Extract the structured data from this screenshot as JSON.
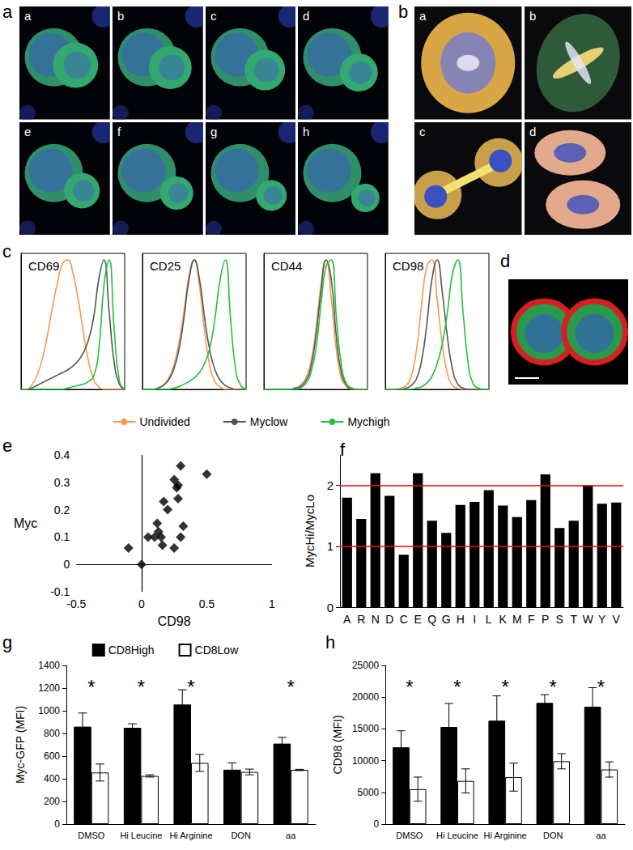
{
  "images": [
    {
      "label": "a",
      "tiles": [
        "a",
        "b",
        "c",
        "d",
        "e",
        "f",
        "g",
        "h"
      ]
    },
    {
      "label": "b",
      "tiles": [
        "a",
        "b",
        "c",
        "d"
      ]
    },
    {
      "label": "d"
    }
  ],
  "chart_data": [
    {
      "label": "c",
      "type": "line",
      "panels": [
        "CD69",
        "CD25",
        "CD44",
        "CD98"
      ],
      "x": [
        0,
        5,
        10,
        15,
        20,
        25,
        30,
        35,
        40,
        45,
        50,
        55,
        60,
        65,
        70,
        75,
        80,
        85,
        90,
        95,
        100
      ],
      "xlim": [
        0,
        100
      ],
      "ylim": [
        0,
        105
      ],
      "tick_labels": false,
      "legend": "bottom",
      "series": [
        {
          "name": "Undivided",
          "color": "#f59a4a",
          "values": [
            [
              0,
              0,
              3,
              10,
              22,
              40,
              62,
              82,
              97,
              100,
              90,
              70,
              45,
              22,
              8,
              2,
              0,
              0,
              0,
              0,
              0
            ],
            [
              0,
              0,
              0,
              1,
              3,
              8,
              18,
              35,
              60,
              88,
              100,
              80,
              45,
              18,
              6,
              2,
              0,
              0,
              0,
              0,
              0
            ],
            [
              0,
              0,
              0,
              0,
              0,
              0,
              1,
              3,
              8,
              20,
              45,
              80,
              100,
              70,
              30,
              8,
              2,
              0,
              0,
              0,
              0
            ],
            [
              0,
              0,
              0,
              1,
              3,
              10,
              30,
              65,
              95,
              100,
              70,
              35,
              12,
              3,
              1,
              0,
              0,
              0,
              0,
              0,
              0
            ]
          ]
        },
        {
          "name": "Myclow",
          "color": "#555555",
          "values": [
            [
              0,
              0,
              1,
              3,
              5,
              7,
              9,
              11,
              13,
              15,
              18,
              22,
              28,
              38,
              55,
              85,
              100,
              60,
              20,
              4,
              0
            ],
            [
              0,
              0,
              0,
              1,
              3,
              7,
              15,
              30,
              55,
              85,
              100,
              85,
              55,
              30,
              15,
              7,
              3,
              1,
              0,
              0,
              0
            ],
            [
              0,
              0,
              0,
              0,
              0,
              0,
              1,
              2,
              6,
              16,
              40,
              75,
              100,
              85,
              40,
              12,
              3,
              0,
              0,
              0,
              0
            ],
            [
              0,
              0,
              0,
              0,
              1,
              3,
              8,
              22,
              50,
              85,
              100,
              75,
              40,
              15,
              4,
              1,
              0,
              0,
              0,
              0,
              0
            ]
          ]
        },
        {
          "name": "Mychigh",
          "color": "#22c03a",
          "values": [
            [
              0,
              0,
              0,
              0,
              0,
              0,
              0,
              0,
              0,
              1,
              2,
              3,
              4,
              6,
              10,
              30,
              80,
              100,
              45,
              6,
              0
            ],
            [
              0,
              0,
              0,
              0,
              0,
              0,
              1,
              2,
              4,
              6,
              9,
              13,
              20,
              32,
              55,
              85,
              100,
              55,
              15,
              3,
              0
            ],
            [
              0,
              0,
              0,
              0,
              0,
              0,
              0,
              1,
              4,
              12,
              30,
              65,
              95,
              100,
              55,
              18,
              4,
              1,
              0,
              0,
              0
            ],
            [
              0,
              0,
              0,
              0,
              0,
              0,
              1,
              2,
              5,
              10,
              20,
              35,
              60,
              90,
              100,
              60,
              20,
              4,
              1,
              0,
              0
            ]
          ]
        }
      ]
    },
    {
      "label": "e",
      "type": "scatter",
      "x_label": "CD98",
      "y_label": "Myc",
      "x": [
        -0.1,
        0,
        0.05,
        0.1,
        0.12,
        0.13,
        0.15,
        0.16,
        0.17,
        0.2,
        0.25,
        0.25,
        0.28,
        0.28,
        0.3,
        0.3,
        0.32,
        0.5,
        0.27
      ],
      "values": [
        0.06,
        0,
        0.1,
        0.1,
        0.15,
        0.12,
        0.1,
        0.07,
        0.23,
        0.2,
        0.31,
        0.06,
        0.29,
        0.24,
        0.36,
        0.1,
        0.14,
        0.33,
        0.28
      ],
      "xlim": [
        -0.5,
        1
      ],
      "xticks": [
        -0.5,
        0,
        0.5,
        1
      ],
      "ylim": [
        -0.1,
        0.4
      ],
      "yticks": [
        -0.1,
        0,
        0.1,
        0.2,
        0.3,
        0.4
      ],
      "marker": "diamond",
      "color": "#000000"
    },
    {
      "label": "f",
      "type": "bar",
      "y_label": "MycHi/MycLo",
      "categories": [
        "A",
        "R",
        "N",
        "D",
        "C",
        "E",
        "Q",
        "G",
        "H",
        "I",
        "L",
        "K",
        "M",
        "F",
        "P",
        "S",
        "T",
        "W",
        "Y",
        "V"
      ],
      "values": [
        1.8,
        1.45,
        2.2,
        1.83,
        0.86,
        2.2,
        1.42,
        1.22,
        1.68,
        1.73,
        1.92,
        1.67,
        1.48,
        1.76,
        2.18,
        1.3,
        1.42,
        2.0,
        1.7,
        1.72
      ],
      "ylim": [
        0,
        2.5
      ],
      "yticks": [
        0,
        1,
        2
      ],
      "color": "#000000",
      "reference_lines": {
        "values": [
          1,
          2
        ],
        "color": "#ff0000"
      }
    },
    {
      "label": "g",
      "type": "bar",
      "y_label": "Myc-GFP (MFI)",
      "categories": [
        "DMSO",
        "Hi Leucine",
        "Hi Arginine",
        "DON",
        "aa"
      ],
      "ylim": [
        0,
        1400
      ],
      "yticks": [
        0,
        200,
        400,
        600,
        800,
        1000,
        1200,
        1400
      ],
      "legend": "top",
      "series": [
        {
          "name": "CD8High",
          "color": "#000000",
          "values": [
            860,
            850,
            1055,
            480,
            710
          ],
          "errors": [
            120,
            35,
            130,
            60,
            55
          ]
        },
        {
          "name": "CD8Low",
          "color": "#ffffff",
          "values": [
            455,
            425,
            540,
            460,
            478
          ],
          "errors": [
            75,
            10,
            75,
            25,
            5
          ]
        }
      ],
      "annotations": [
        "*",
        "*",
        "*",
        null,
        "*"
      ]
    },
    {
      "label": "h",
      "type": "bar",
      "y_label": "CD98 (MFI)",
      "categories": [
        "DMSO",
        "Hi Leucine",
        "Hi Arginine",
        "DON",
        "aa"
      ],
      "ylim": [
        0,
        25000
      ],
      "yticks": [
        0,
        5000,
        10000,
        15000,
        20000,
        25000
      ],
      "series": [
        {
          "name": "CD8High",
          "color": "#000000",
          "values": [
            12100,
            15300,
            16300,
            19100,
            18500
          ],
          "errors": [
            2600,
            3700,
            3900,
            1300,
            3000
          ]
        },
        {
          "name": "CD8Low",
          "color": "#ffffff",
          "values": [
            5500,
            6800,
            7400,
            9900,
            8600
          ],
          "errors": [
            1900,
            1900,
            2200,
            1200,
            1200
          ]
        }
      ],
      "annotations": [
        "*",
        "*",
        "*",
        "*",
        "*"
      ]
    }
  ]
}
